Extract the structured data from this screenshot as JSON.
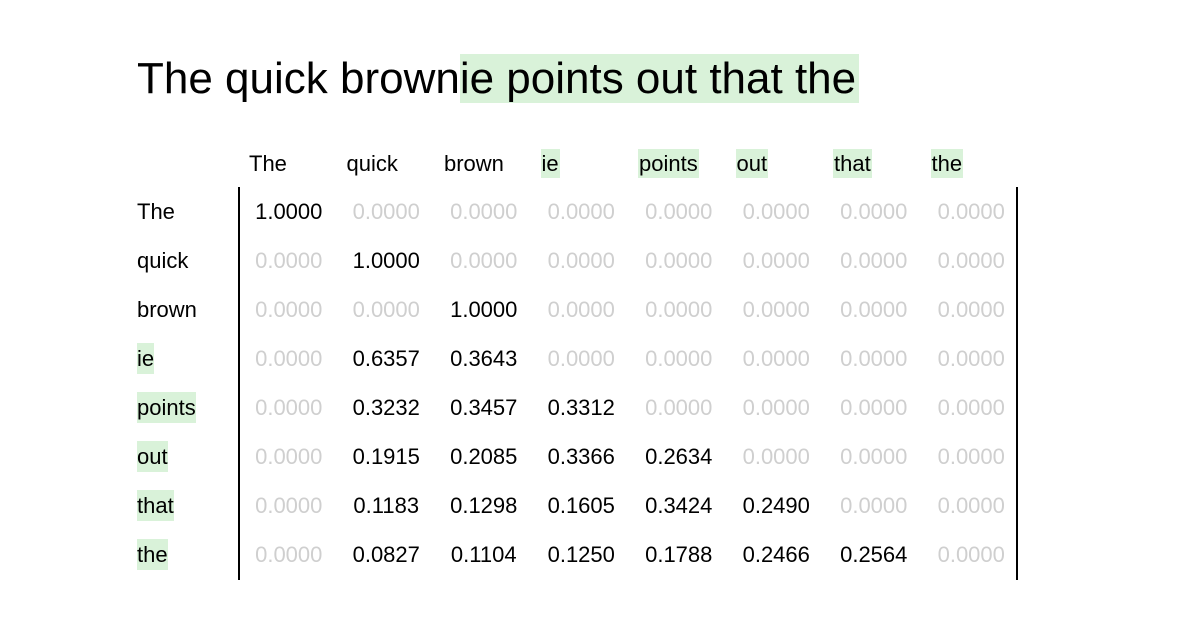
{
  "headline": {
    "prompt": "The quick brown",
    "generated": "ie points out that the"
  },
  "tokens": [
    {
      "text": "The",
      "generated": false
    },
    {
      "text": "quick",
      "generated": false
    },
    {
      "text": "brown",
      "generated": false
    },
    {
      "text": "ie",
      "generated": true
    },
    {
      "text": "points",
      "generated": true
    },
    {
      "text": "out",
      "generated": true
    },
    {
      "text": "that",
      "generated": true
    },
    {
      "text": "the",
      "generated": true
    }
  ],
  "highlight_color": "#d9f2d9",
  "zero_value_color": "#cfcfcf",
  "chart_data": {
    "type": "heatmap",
    "x": [
      "The",
      "quick",
      "brown",
      "ie",
      "points",
      "out",
      "that",
      "the"
    ],
    "y": [
      "The",
      "quick",
      "brown",
      "ie",
      "points",
      "out",
      "that",
      "the"
    ],
    "values": [
      [
        "1.0000",
        "0.0000",
        "0.0000",
        "0.0000",
        "0.0000",
        "0.0000",
        "0.0000",
        "0.0000"
      ],
      [
        "0.0000",
        "1.0000",
        "0.0000",
        "0.0000",
        "0.0000",
        "0.0000",
        "0.0000",
        "0.0000"
      ],
      [
        "0.0000",
        "0.0000",
        "1.0000",
        "0.0000",
        "0.0000",
        "0.0000",
        "0.0000",
        "0.0000"
      ],
      [
        "0.0000",
        "0.6357",
        "0.3643",
        "0.0000",
        "0.0000",
        "0.0000",
        "0.0000",
        "0.0000"
      ],
      [
        "0.0000",
        "0.3232",
        "0.3457",
        "0.3312",
        "0.0000",
        "0.0000",
        "0.0000",
        "0.0000"
      ],
      [
        "0.0000",
        "0.1915",
        "0.2085",
        "0.3366",
        "0.2634",
        "0.0000",
        "0.0000",
        "0.0000"
      ],
      [
        "0.0000",
        "0.1183",
        "0.1298",
        "0.1605",
        "0.3424",
        "0.2490",
        "0.0000",
        "0.0000"
      ],
      [
        "0.0000",
        "0.0827",
        "0.1104",
        "0.1250",
        "0.1788",
        "0.2466",
        "0.2564",
        "0.0000"
      ]
    ]
  }
}
